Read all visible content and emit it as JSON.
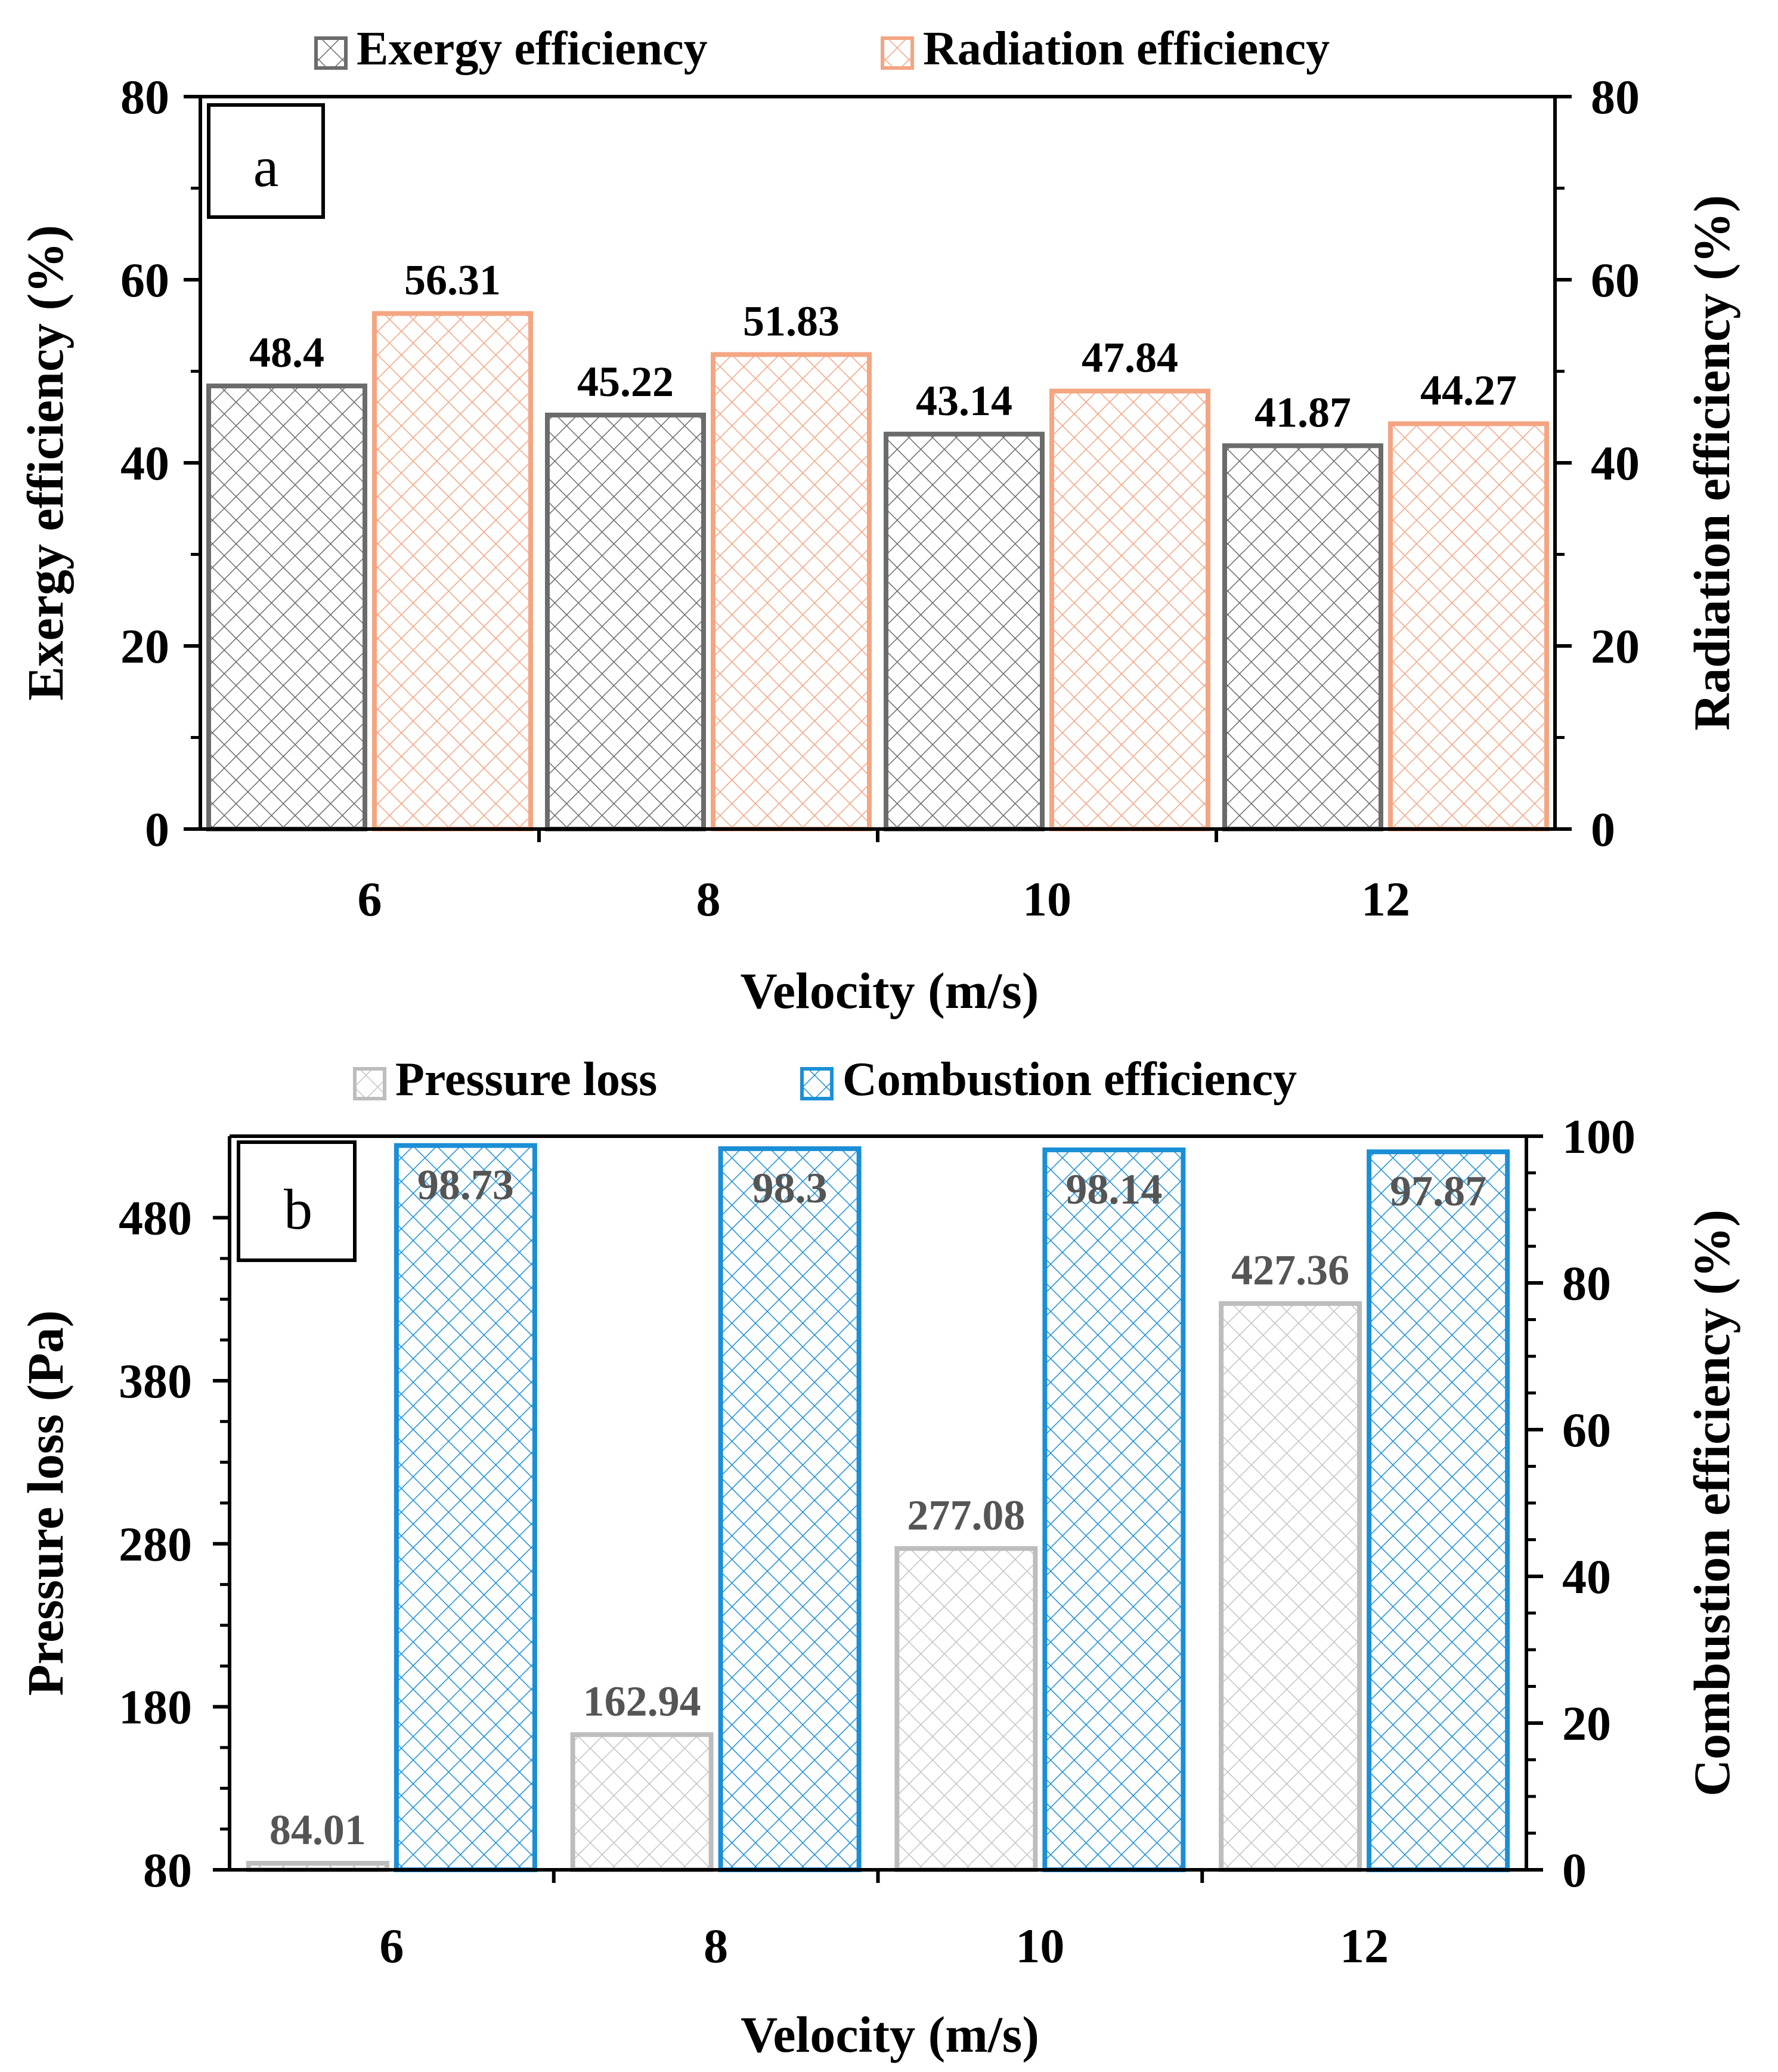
{
  "chart_data": [
    {
      "type": "bar",
      "panel_label": "a",
      "xlabel": "Velocity (m/s)",
      "ylabel": "Exergy efficiency (%)",
      "y2label": "Radiation efficiency (%)",
      "categories": [
        "6",
        "8",
        "10",
        "12"
      ],
      "ylim": [
        0,
        80
      ],
      "y2lim": [
        0,
        80
      ],
      "yticks": [
        "0",
        "20",
        "40",
        "60",
        "80"
      ],
      "y2ticks": [
        "0",
        "20",
        "40",
        "60",
        "80"
      ],
      "series": [
        {
          "name": "Exergy efficiency",
          "axis": "left",
          "color": "#6b6b6b",
          "values": [
            48.4,
            45.22,
            43.14,
            41.87
          ],
          "labels": [
            "48.4",
            "45.22",
            "43.14",
            "41.87"
          ]
        },
        {
          "name": "Radiation efficiency",
          "axis": "right",
          "color": "#f4a582",
          "values": [
            56.31,
            51.83,
            47.84,
            44.27
          ],
          "labels": [
            "56.31",
            "51.83",
            "47.84",
            "44.27"
          ]
        }
      ]
    },
    {
      "type": "bar",
      "panel_label": "b",
      "xlabel": "Velocity (m/s)",
      "ylabel": "Pressure loss (Pa)",
      "y2label": "Combustion efficiency (%)",
      "categories": [
        "6",
        "8",
        "10",
        "12"
      ],
      "ylim": [
        80,
        530
      ],
      "y2lim": [
        0,
        100
      ],
      "yticks": [
        "80",
        "180",
        "280",
        "380",
        "480"
      ],
      "y2ticks": [
        "0",
        "20",
        "40",
        "60",
        "80",
        "100"
      ],
      "series": [
        {
          "name": "Pressure loss",
          "axis": "left",
          "color": "#bdbdbd",
          "values": [
            84.01,
            162.94,
            277.08,
            427.36
          ],
          "labels": [
            "84.01",
            "162.94",
            "277.08",
            "427.36"
          ]
        },
        {
          "name": "Combustion efficiency",
          "axis": "right",
          "color": "#1a8fd6",
          "values": [
            98.73,
            98.3,
            98.14,
            97.87
          ],
          "labels": [
            "98.73",
            "98.3",
            "98.14",
            "97.87"
          ]
        }
      ]
    }
  ]
}
